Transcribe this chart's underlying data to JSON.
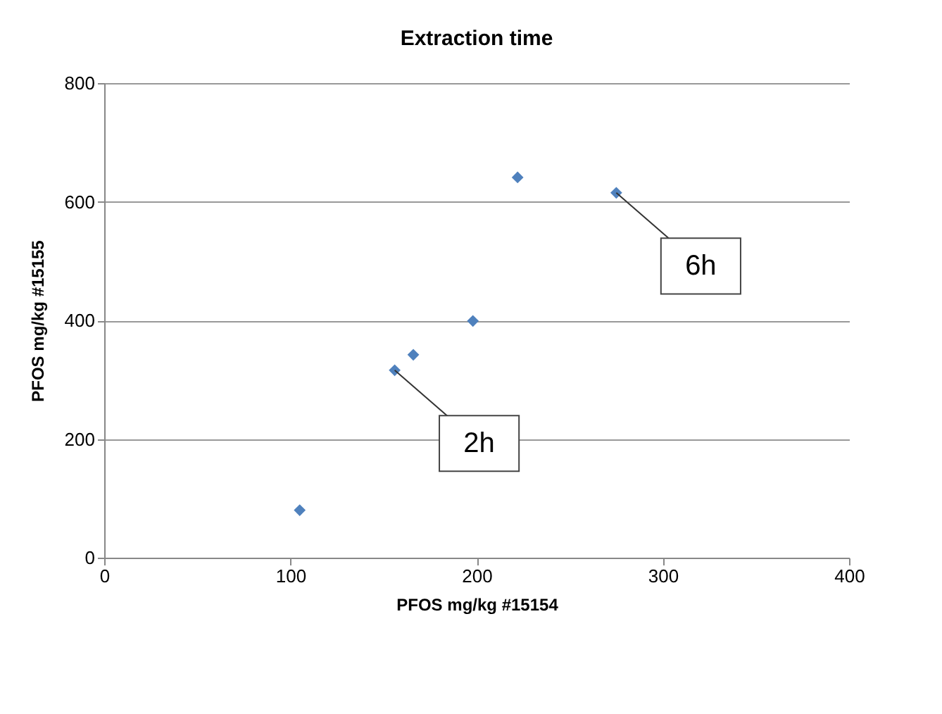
{
  "chart_data": {
    "type": "scatter",
    "title": "Extraction time",
    "xlabel": "PFOS mg/kg #15154",
    "ylabel": "PFOS mg/kg #15155",
    "x": [
      105,
      156,
      166,
      198,
      222,
      275
    ],
    "series": [
      {
        "color": "#4f81bd",
        "values": [
          80,
          316,
          342,
          399,
          641,
          615
        ]
      }
    ],
    "xlim": [
      0,
      400
    ],
    "xticks": [
      0,
      100,
      200,
      300,
      400
    ],
    "ylim": [
      0,
      800
    ],
    "yticks": [
      0,
      200,
      400,
      600,
      800
    ],
    "grid": "y",
    "marker": "diamond",
    "annotations": [
      {
        "text": "2h",
        "x": 156,
        "y": 316
      },
      {
        "text": "6h",
        "x": 275,
        "y": 615
      }
    ]
  }
}
